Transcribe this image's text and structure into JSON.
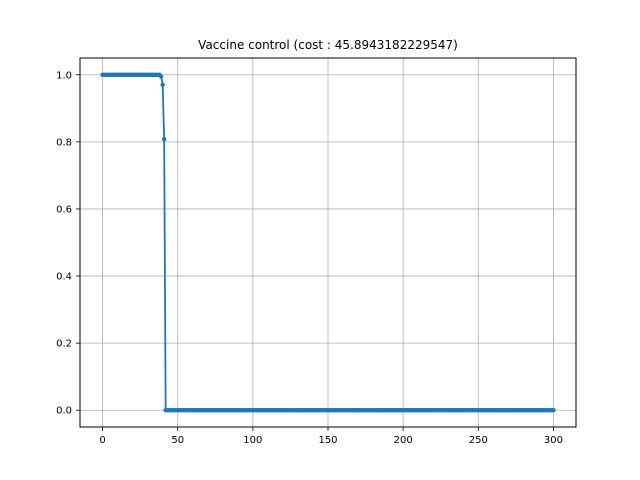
{
  "chart_data": {
    "type": "line",
    "title": "Vaccine control (cost : 45.8943182229547)",
    "xlabel": "",
    "ylabel": "",
    "xlim": [
      -15,
      315
    ],
    "ylim": [
      -0.05,
      1.05
    ],
    "grid": true,
    "x_ticks": [
      0,
      50,
      100,
      150,
      200,
      250,
      300
    ],
    "y_ticks": [
      0.0,
      0.2,
      0.4,
      0.6,
      0.8,
      1.0
    ],
    "x_tick_labels": [
      "0",
      "50",
      "100",
      "150",
      "200",
      "250",
      "300"
    ],
    "y_tick_labels": [
      "0.0",
      "0.2",
      "0.4",
      "0.6",
      "0.8",
      "1.0"
    ],
    "line_color": "#1f77b4",
    "grid_color": "#b0b0b0",
    "series": [
      {
        "marker": "dot",
        "segments": [
          {
            "x_start": 0,
            "x_end": 38,
            "y": 1.0
          },
          {
            "x_start": 42,
            "x_end": 300,
            "y": 0.0
          }
        ],
        "points": [
          {
            "x": 39,
            "y": 0.995
          },
          {
            "x": 40,
            "y": 0.97
          },
          {
            "x": 41,
            "y": 0.808
          }
        ]
      }
    ]
  }
}
